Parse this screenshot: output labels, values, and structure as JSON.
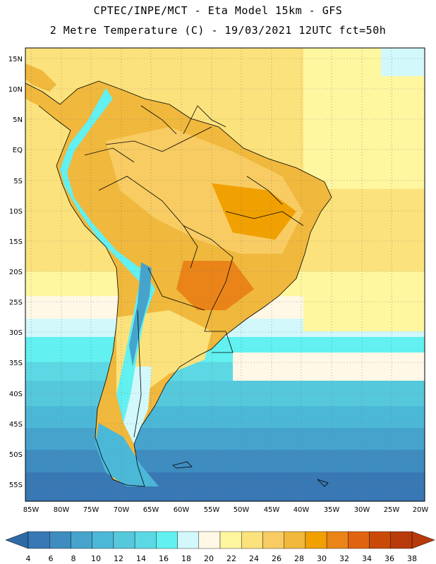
{
  "header": {
    "line1": "CPTEC/INPE/MCT -  Eta Model 15km - GFS",
    "line2": "2 Metre Temperature (C) - 19/03/2021 12UTC fct=50h"
  },
  "map": {
    "lat_labels": [
      "15N",
      "10N",
      "5N",
      "EQ",
      "5S",
      "10S",
      "15S",
      "20S",
      "25S",
      "30S",
      "35S",
      "40S",
      "45S",
      "50S",
      "55S"
    ],
    "lon_labels": [
      "85W",
      "80W",
      "75W",
      "70W",
      "65W",
      "60W",
      "55W",
      "50W",
      "45W",
      "40W",
      "35W",
      "30W",
      "25W",
      "20W"
    ]
  },
  "colorbar": {
    "labels": [
      "4",
      "6",
      "8",
      "10",
      "12",
      "14",
      "16",
      "18",
      "20",
      "22",
      "24",
      "26",
      "28",
      "30",
      "32",
      "34",
      "36",
      "38"
    ],
    "colors": [
      "#3878b4",
      "#3e8cc0",
      "#46a4cc",
      "#4cb8d8",
      "#56c8dc",
      "#5cd8e4",
      "#62f0f0",
      "#d2f8fc",
      "#fff8e6",
      "#fff6a0",
      "#fce27c",
      "#f8cc62",
      "#f0b83c",
      "#f0a000",
      "#ea8418",
      "#e06410",
      "#c84a06",
      "#b83a0a"
    ],
    "low_color": "#2f6aa6",
    "high_color": "#b83a0a"
  }
}
